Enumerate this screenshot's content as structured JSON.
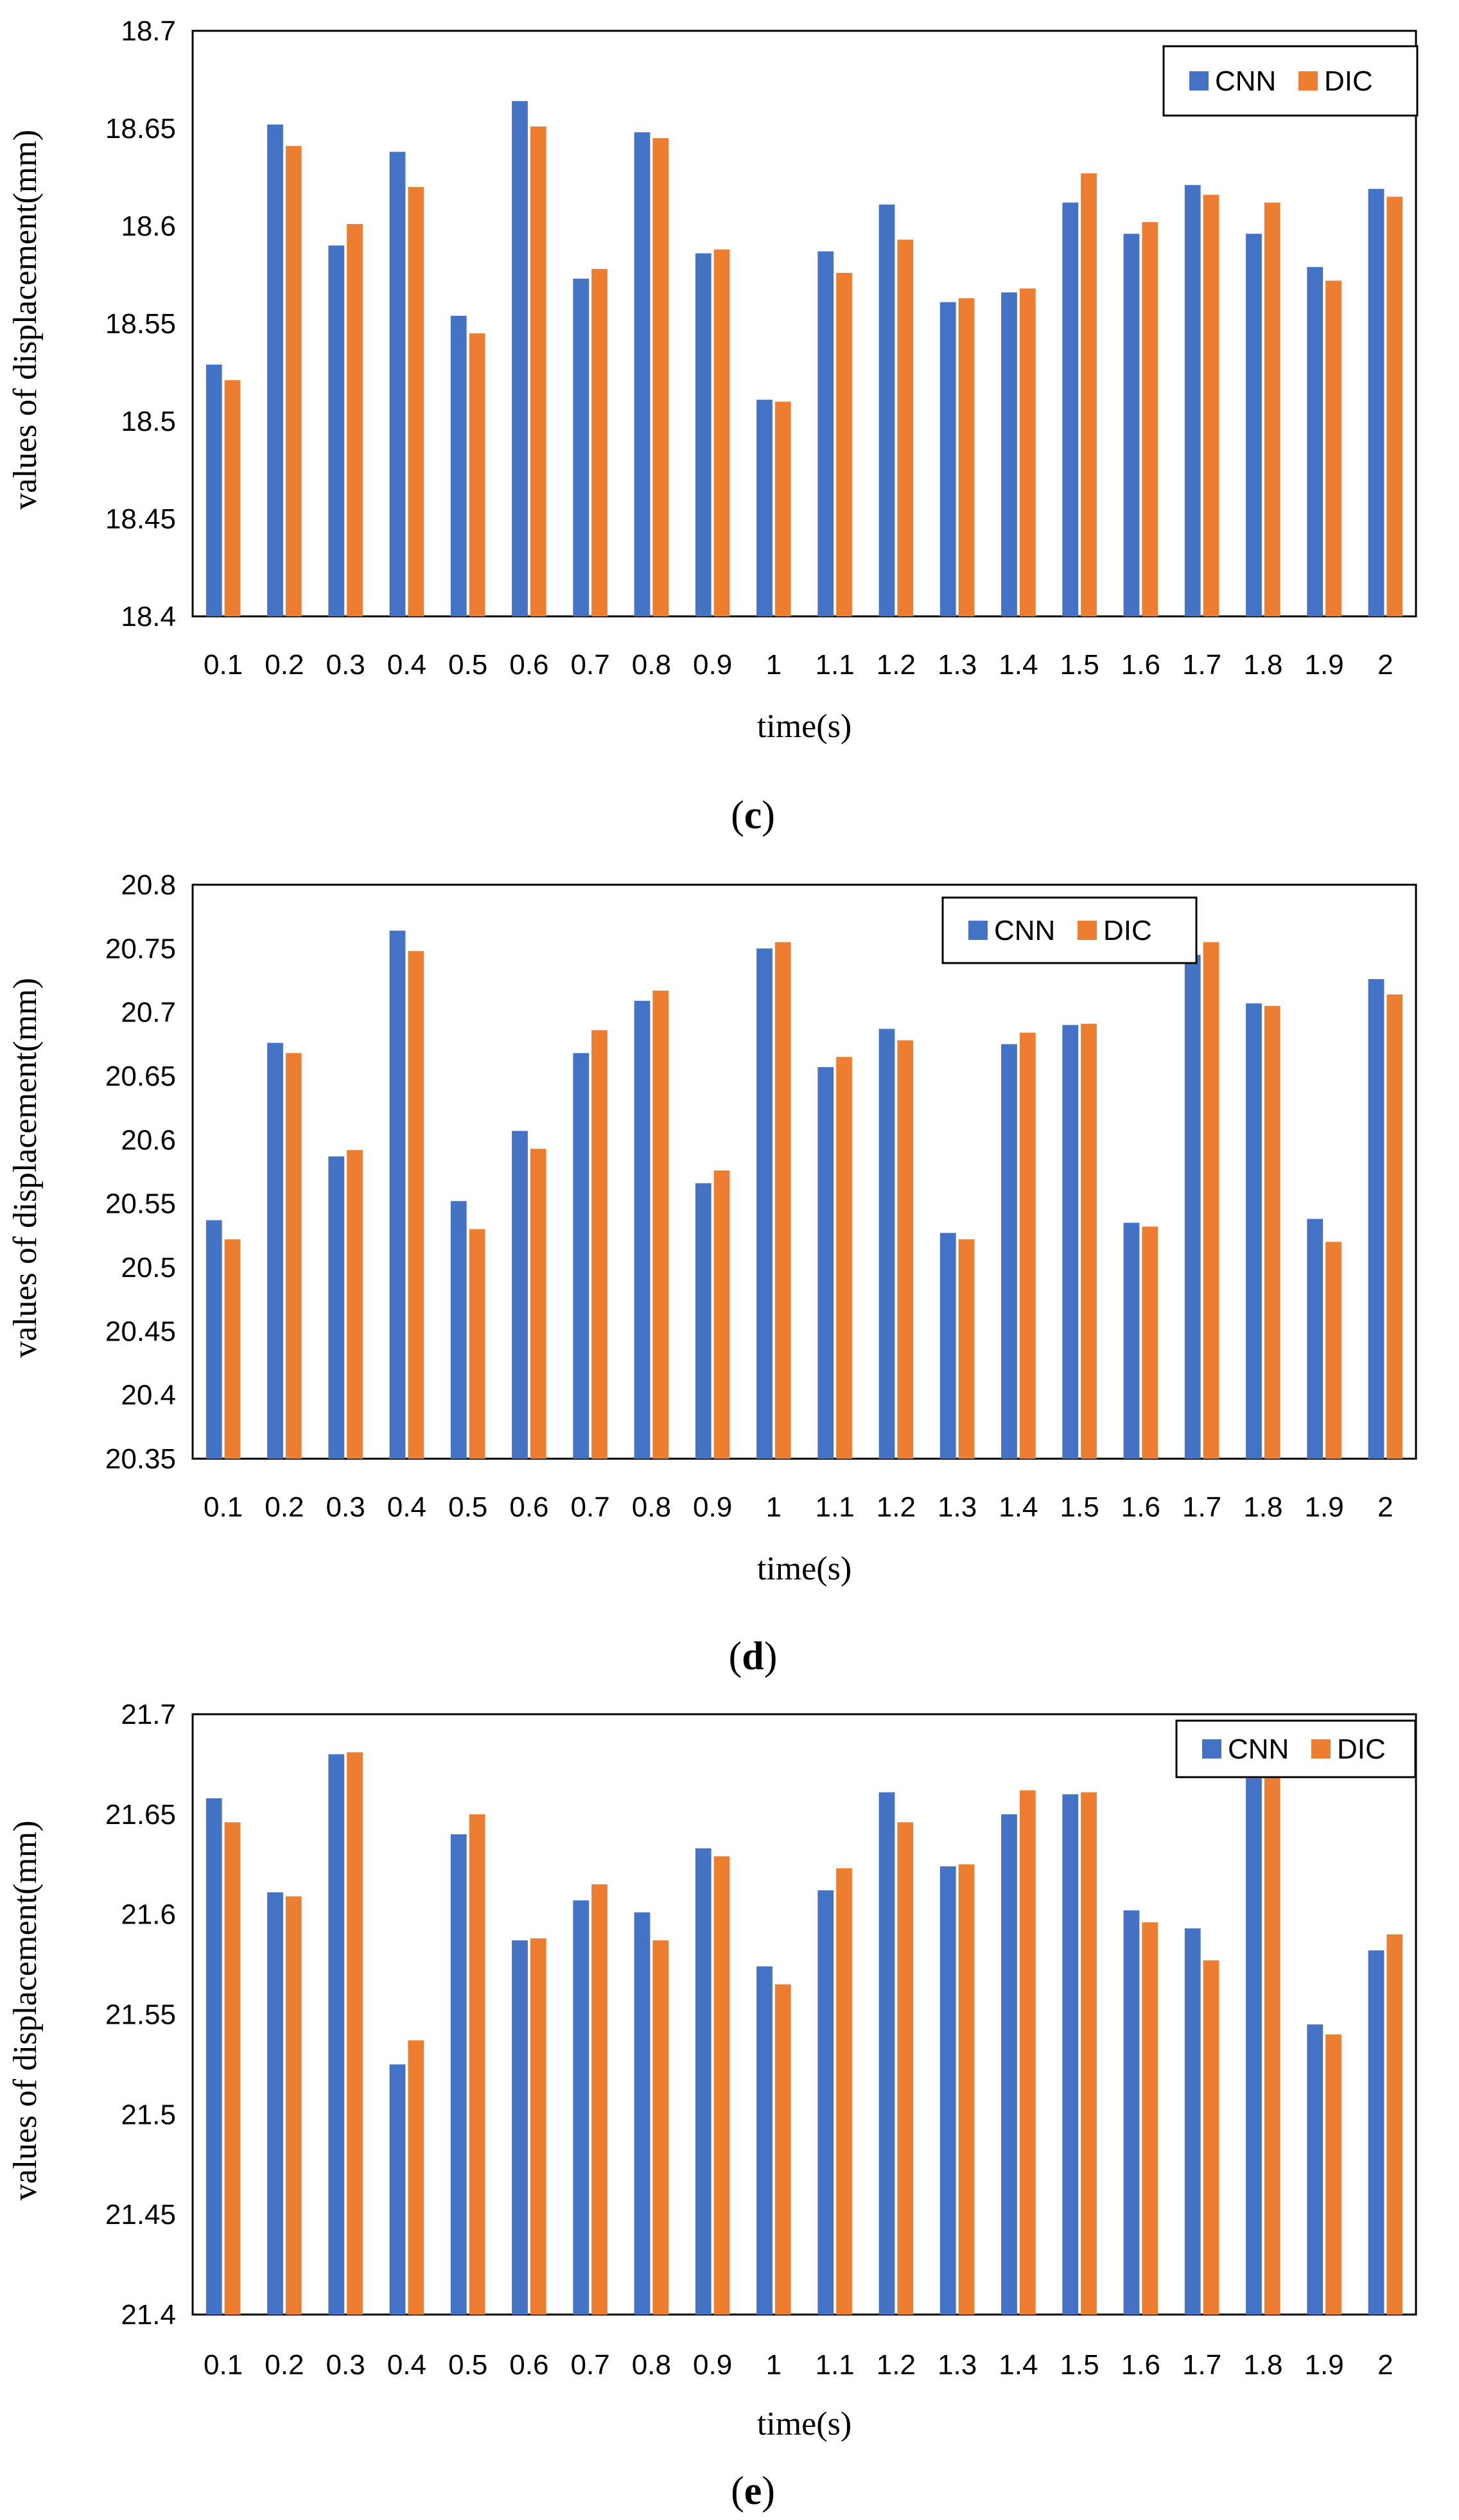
{
  "chart_data": [
    {
      "type": "bar",
      "caption_open": "(",
      "caption_letter": "c",
      "caption_close": ")",
      "xlabel": "time(s)",
      "ylabel": "values of displacement(mm)",
      "ylim": [
        18.4,
        18.7
      ],
      "yticks": [
        "18.4",
        "18.45",
        "18.5",
        "18.55",
        "18.6",
        "18.65",
        "18.7"
      ],
      "legend_position": "top-right",
      "categories": [
        "0.1",
        "0.2",
        "0.3",
        "0.4",
        "0.5",
        "0.6",
        "0.7",
        "0.8",
        "0.9",
        "1",
        "1.1",
        "1.2",
        "1.3",
        "1.4",
        "1.5",
        "1.6",
        "1.7",
        "1.8",
        "1.9",
        "2"
      ],
      "series": [
        {
          "name": "CNN",
          "color": "#4472C4",
          "values": [
            18.529,
            18.652,
            18.59,
            18.638,
            18.554,
            18.664,
            18.573,
            18.648,
            18.586,
            18.511,
            18.587,
            18.611,
            18.561,
            18.566,
            18.612,
            18.596,
            18.621,
            18.596,
            18.579,
            18.619
          ]
        },
        {
          "name": "DIC",
          "color": "#ED7D31",
          "values": [
            18.521,
            18.641,
            18.601,
            18.62,
            18.545,
            18.651,
            18.578,
            18.645,
            18.588,
            18.51,
            18.576,
            18.593,
            18.563,
            18.568,
            18.627,
            18.602,
            18.616,
            18.612,
            18.572,
            18.615
          ]
        }
      ]
    },
    {
      "type": "bar",
      "caption_open": "(",
      "caption_letter": "d",
      "caption_close": ")",
      "xlabel": "time(s)",
      "ylabel": "values of displacement(mm)",
      "ylim": [
        20.35,
        20.8
      ],
      "yticks": [
        "20.35",
        "20.4",
        "20.45",
        "20.5",
        "20.55",
        "20.6",
        "20.65",
        "20.7",
        "20.75",
        "20.8"
      ],
      "legend_position": "top-center",
      "categories": [
        "0.1",
        "0.2",
        "0.3",
        "0.4",
        "0.5",
        "0.6",
        "0.7",
        "0.8",
        "0.9",
        "1",
        "1.1",
        "1.2",
        "1.3",
        "1.4",
        "1.5",
        "1.6",
        "1.7",
        "1.8",
        "1.9",
        "2"
      ],
      "series": [
        {
          "name": "CNN",
          "color": "#4472C4",
          "values": [
            20.537,
            20.676,
            20.587,
            20.764,
            20.552,
            20.607,
            20.668,
            20.709,
            20.566,
            20.75,
            20.657,
            20.687,
            20.527,
            20.675,
            20.69,
            20.535,
            20.745,
            20.707,
            20.538,
            20.726
          ]
        },
        {
          "name": "DIC",
          "color": "#ED7D31",
          "values": [
            20.522,
            20.668,
            20.592,
            20.748,
            20.53,
            20.593,
            20.686,
            20.717,
            20.576,
            20.755,
            20.665,
            20.678,
            20.522,
            20.684,
            20.691,
            20.532,
            20.755,
            20.705,
            20.52,
            20.714
          ]
        }
      ]
    },
    {
      "type": "bar",
      "caption_open": "(",
      "caption_letter": "e",
      "caption_close": ")",
      "xlabel": "time(s)",
      "ylabel": "values of displacement(mm)",
      "ylim": [
        21.4,
        21.7
      ],
      "yticks": [
        "21.4",
        "21.45",
        "21.5",
        "21.55",
        "21.6",
        "21.65",
        "21.7"
      ],
      "legend_position": "top-right",
      "categories": [
        "0.1",
        "0.2",
        "0.3",
        "0.4",
        "0.5",
        "0.6",
        "0.7",
        "0.8",
        "0.9",
        "1",
        "1.1",
        "1.2",
        "1.3",
        "1.4",
        "1.5",
        "1.6",
        "1.7",
        "1.8",
        "1.9",
        "2"
      ],
      "series": [
        {
          "name": "CNN",
          "color": "#4472C4",
          "values": [
            21.658,
            21.611,
            21.68,
            21.525,
            21.64,
            21.587,
            21.607,
            21.601,
            21.633,
            21.574,
            21.612,
            21.661,
            21.624,
            21.65,
            21.66,
            21.602,
            21.593,
            21.668,
            21.545,
            21.582
          ]
        },
        {
          "name": "DIC",
          "color": "#ED7D31",
          "values": [
            21.646,
            21.609,
            21.681,
            21.537,
            21.65,
            21.588,
            21.615,
            21.587,
            21.629,
            21.565,
            21.623,
            21.646,
            21.625,
            21.662,
            21.661,
            21.596,
            21.577,
            21.668,
            21.54,
            21.59
          ]
        }
      ]
    }
  ]
}
